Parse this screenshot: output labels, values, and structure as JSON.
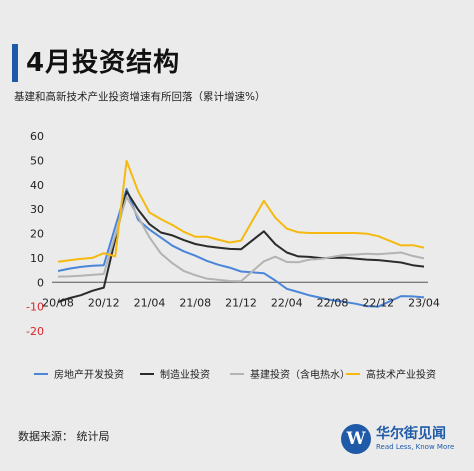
{
  "header": {
    "title": "4月投资结构",
    "subtitle": "基建和高新技术产业投资增速有所回落（累计增速%）",
    "accent_color": "#1e5aa8"
  },
  "chart_data": {
    "type": "line",
    "x": [
      "20/08",
      "20/09",
      "20/10",
      "20/11",
      "20/12",
      "21/01",
      "21/02",
      "21/03",
      "21/04",
      "21/05",
      "21/06",
      "21/07",
      "21/08",
      "21/09",
      "21/10",
      "21/11",
      "21/12",
      "22/01",
      "22/02",
      "22/03",
      "22/04",
      "22/05",
      "22/06",
      "22/07",
      "22/08",
      "22/09",
      "22/10",
      "22/11",
      "22/12",
      "23/01",
      "23/02",
      "23/03",
      "23/04"
    ],
    "x_tick_labels": [
      "20/08",
      "20/12",
      "21/04",
      "21/08",
      "21/12",
      "22/04",
      "22/08",
      "22/12",
      "23/04"
    ],
    "ylim": [
      -20,
      60
    ],
    "yticks": [
      -20,
      -10,
      0,
      10,
      20,
      30,
      40,
      50,
      60
    ],
    "grid": false,
    "legend_position": "bottom",
    "series": [
      {
        "name": "房地产开发投资",
        "color": "#4a86d8",
        "values": [
          4.6,
          5.6,
          6.3,
          6.8,
          7.0,
          null,
          38.3,
          25.6,
          21.6,
          18.3,
          15.0,
          12.7,
          10.9,
          8.8,
          7.2,
          6.0,
          4.4,
          null,
          3.7,
          0.7,
          -2.7,
          -4.0,
          -5.4,
          -6.4,
          -7.4,
          -8.0,
          -8.8,
          -9.8,
          -10.0,
          null,
          -5.7,
          -5.8,
          -6.2
        ]
      },
      {
        "name": "制造业投资",
        "color": "#2b2b2b",
        "values": [
          -8.1,
          -6.5,
          -5.3,
          -3.5,
          -2.2,
          null,
          37.3,
          29.8,
          23.8,
          20.4,
          19.2,
          17.3,
          15.7,
          14.8,
          14.2,
          13.7,
          13.5,
          null,
          20.9,
          15.6,
          12.2,
          10.6,
          10.4,
          9.9,
          10.0,
          10.1,
          9.7,
          9.3,
          9.1,
          null,
          8.1,
          7.0,
          6.4
        ]
      },
      {
        "name": "基建投资（含电热水）",
        "color": "#b3b3b3",
        "values": [
          2.3,
          2.4,
          2.7,
          3.0,
          3.4,
          null,
          35.0,
          26.8,
          18.4,
          11.8,
          7.8,
          4.6,
          2.9,
          1.5,
          1.0,
          0.5,
          0.4,
          null,
          8.6,
          10.5,
          8.3,
          8.2,
          9.3,
          9.6,
          10.4,
          11.2,
          11.4,
          11.7,
          11.5,
          null,
          12.2,
          10.8,
          9.8
        ]
      },
      {
        "name": "高技术产业投资",
        "color": "#f5b90f",
        "values": [
          8.4,
          9.0,
          9.6,
          10.0,
          11.9,
          10.6,
          49.8,
          37.3,
          28.6,
          25.9,
          23.5,
          20.7,
          18.7,
          18.7,
          17.5,
          16.3,
          17.1,
          null,
          33.4,
          26.5,
          22.0,
          20.5,
          20.2,
          20.2,
          20.2,
          20.2,
          20.2,
          19.9,
          18.9,
          null,
          15.1,
          15.2,
          14.2
        ]
      }
    ]
  },
  "footer": {
    "source": "数据来源：  统计局",
    "brand_logo_letter": "W",
    "brand_name": "华尔街见闻",
    "brand_slogan": "Read Less, Know More"
  }
}
